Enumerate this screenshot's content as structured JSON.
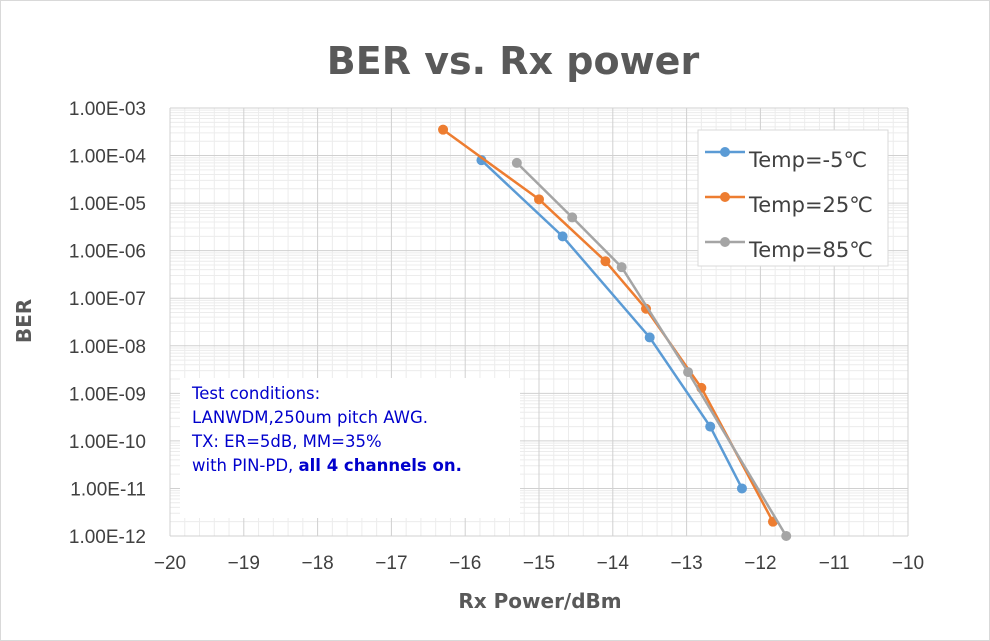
{
  "chart_data": {
    "type": "line",
    "title": "BER vs. Rx power",
    "xlabel": "Rx Power/dBm",
    "ylabel": "BER",
    "xlim": [
      -20,
      -10
    ],
    "ylim": [
      1e-12,
      0.001
    ],
    "yscale": "log",
    "x_ticks": [
      "−20",
      "−19",
      "−18",
      "−17",
      "−16",
      "−15",
      "−14",
      "−13",
      "−12",
      "−11",
      "−10"
    ],
    "y_ticks": [
      "1.00E-03",
      "1.00E-04",
      "1.00E-05",
      "1.00E-06",
      "1.00E-07",
      "1.00E-08",
      "1.00E-09",
      "1.00E-10",
      "1.00E-11",
      "1.00E-12"
    ],
    "grid": true,
    "legend_position": "top-right",
    "series": [
      {
        "name": "Temp=-5℃",
        "color": "#5b9bd5",
        "x": [
          -15.78,
          -14.68,
          -13.5,
          -12.68,
          -12.25
        ],
        "y": [
          8e-05,
          2e-06,
          1.5e-08,
          2e-10,
          1e-11
        ]
      },
      {
        "name": "Temp=25℃",
        "color": "#ed7d31",
        "x": [
          -16.3,
          -15.0,
          -14.1,
          -13.55,
          -12.8,
          -11.83
        ],
        "y": [
          0.00035,
          1.2e-05,
          6e-07,
          6e-08,
          1.3e-09,
          2e-12
        ]
      },
      {
        "name": "Temp=85℃",
        "color": "#a5a5a5",
        "x": [
          -15.3,
          -14.55,
          -13.88,
          -12.98,
          -11.65
        ],
        "y": [
          7e-05,
          5e-06,
          4.5e-07,
          2.8e-09,
          1e-12
        ]
      }
    ]
  },
  "annotation": {
    "line1": "Test conditions:",
    "line2": "LANWDM,250um pitch AWG.",
    "line3": "TX: ER=5dB, MM=35%",
    "line4_plain": "with PIN-PD, ",
    "line4_bold": "all 4 channels on."
  }
}
